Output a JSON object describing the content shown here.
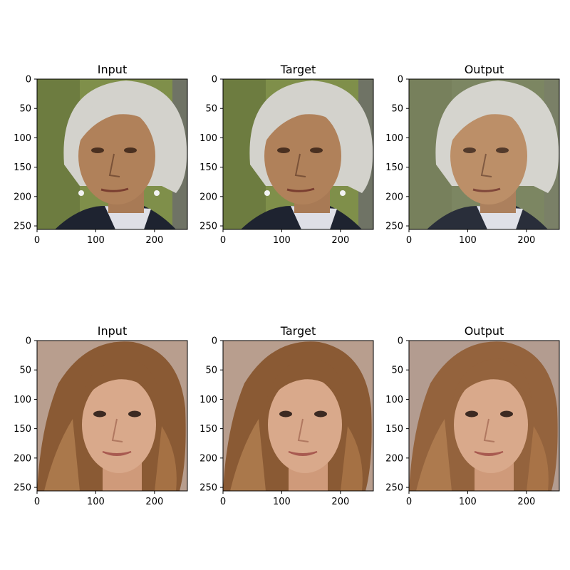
{
  "figure": {
    "panels": [
      {
        "title": "Input",
        "subject": "gray-haired-woman",
        "kind": "input"
      },
      {
        "title": "Target",
        "subject": "gray-haired-woman",
        "kind": "target"
      },
      {
        "title": "Output",
        "subject": "gray-haired-woman",
        "kind": "output"
      },
      {
        "title": "Input",
        "subject": "brown-haired-woman",
        "kind": "input"
      },
      {
        "title": "Target",
        "subject": "brown-haired-woman",
        "kind": "target"
      },
      {
        "title": "Output",
        "subject": "brown-haired-woman",
        "kind": "output"
      }
    ],
    "x_ticks": [
      "0",
      "100",
      "200"
    ],
    "y_ticks": [
      "0",
      "50",
      "100",
      "150",
      "200",
      "250"
    ],
    "x_tick_values": [
      0,
      100,
      200
    ],
    "y_tick_values": [
      0,
      50,
      100,
      150,
      200,
      250
    ],
    "image_extent": [
      256,
      256
    ]
  },
  "colors": {
    "bg_green": "#7f8f4a",
    "bg_green_dark": "#5f6d38",
    "bg_beige": "#b89e8e",
    "gray_hair": "#d3d2cc",
    "skin_tan": "#b0815a",
    "skin_light": "#d9a98b",
    "brown_hair": "#8a5a34",
    "jacket": "#1e2330",
    "shirt": "#dedfe6"
  }
}
